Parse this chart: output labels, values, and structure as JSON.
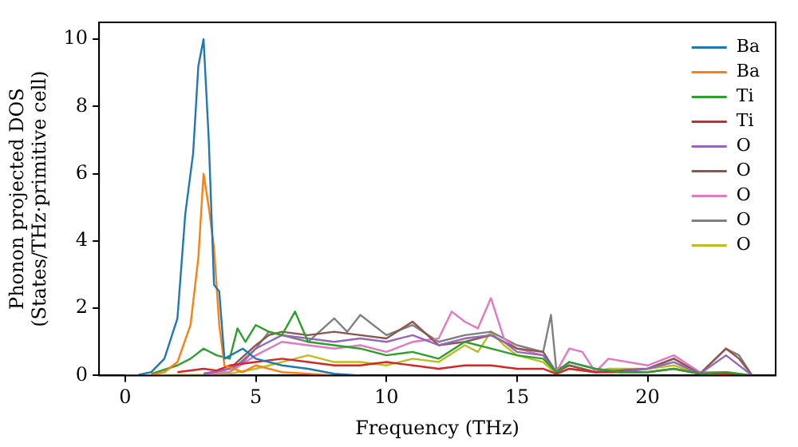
{
  "chart_data": {
    "type": "line",
    "xlabel": "Frequency (THz)",
    "ylabel": "Phonon projected DOS\n(States/THz·primitive cell)",
    "xlim": [
      -1,
      24.9
    ],
    "ylim": [
      0,
      10.5
    ],
    "xticks": [
      0,
      5,
      10,
      15,
      20
    ],
    "yticks": [
      0,
      2,
      4,
      6,
      8,
      10
    ],
    "grid": false,
    "legend": "top right",
    "marker": "none",
    "line_style": "solid",
    "series": [
      {
        "name": "Ba",
        "color": "#1f77b4",
        "x": [
          0.5,
          1,
          1.5,
          2,
          2.3,
          2.6,
          2.8,
          3,
          3.2,
          3.4,
          3.6,
          3.8,
          4.5,
          5,
          6,
          7,
          8,
          9
        ],
        "values": [
          0.02,
          0.1,
          0.5,
          1.7,
          4.8,
          6.6,
          9.2,
          10,
          7,
          2.7,
          2.5,
          0.5,
          0.8,
          0.5,
          0.3,
          0.2,
          0.05,
          0
        ]
      },
      {
        "name": "Ba",
        "color": "#ff7f0e",
        "x": [
          1,
          1.5,
          2,
          2.5,
          2.8,
          3,
          3.2,
          3.4,
          3.6,
          3.8,
          4.5,
          5,
          6,
          7,
          8
        ],
        "values": [
          0.02,
          0.1,
          0.4,
          1.5,
          3.5,
          6,
          5,
          3.8,
          1.5,
          0.3,
          0.1,
          0.3,
          0.1,
          0.05,
          0
        ]
      },
      {
        "name": "Ti",
        "color": "#2ca02c",
        "x": [
          1,
          2,
          2.5,
          3,
          3.5,
          4,
          4.3,
          4.6,
          5,
          5.5,
          6,
          6.5,
          7,
          8,
          9,
          10,
          11,
          12,
          13,
          14,
          15,
          16,
          16.5,
          17,
          18,
          19,
          20,
          21,
          22,
          23,
          24
        ],
        "values": [
          0.05,
          0.3,
          0.5,
          0.8,
          0.6,
          0.5,
          1.4,
          1,
          1.5,
          1.3,
          1.2,
          1.9,
          1,
          0.9,
          0.8,
          0.6,
          0.7,
          0.5,
          1,
          0.8,
          0.6,
          0.5,
          0.1,
          0.4,
          0.2,
          0.1,
          0.1,
          0.2,
          0.05,
          0.1,
          0
        ]
      },
      {
        "name": "Ti",
        "color": "#d62728",
        "x": [
          2,
          3,
          3.5,
          4,
          5,
          6,
          7,
          8,
          9,
          10,
          11,
          12,
          13,
          14,
          15,
          16,
          16.5,
          17,
          18,
          20,
          21,
          22,
          23,
          24
        ],
        "values": [
          0.1,
          0.2,
          0.15,
          0.3,
          0.4,
          0.5,
          0.4,
          0.3,
          0.3,
          0.4,
          0.3,
          0.2,
          0.3,
          0.3,
          0.2,
          0.2,
          0.05,
          0.2,
          0.1,
          0.1,
          0.2,
          0.05,
          0.05,
          0
        ]
      },
      {
        "name": "O",
        "color": "#9467bd",
        "x": [
          3,
          4,
          4.5,
          5,
          5.5,
          6,
          7,
          8,
          9,
          10,
          11,
          12,
          13,
          14,
          14.5,
          15,
          16,
          16.5,
          17,
          18,
          19,
          20,
          21,
          22,
          23,
          24
        ],
        "values": [
          0.05,
          0.2,
          0.4,
          0.8,
          1,
          1.2,
          1.1,
          1,
          1.1,
          1,
          1.2,
          0.9,
          1.1,
          1.2,
          1,
          0.7,
          0.6,
          0.1,
          0.4,
          0.2,
          0.1,
          0.2,
          0.4,
          0.05,
          0.6,
          0
        ]
      },
      {
        "name": "O",
        "color": "#8c564b",
        "x": [
          3,
          4,
          5,
          5.5,
          6,
          7,
          8,
          9,
          10,
          11,
          12,
          13,
          14,
          15,
          16,
          16.5,
          17,
          18,
          20,
          21,
          22,
          23,
          23.5,
          24
        ],
        "values": [
          0.05,
          0.2,
          0.9,
          1.2,
          1.3,
          1.2,
          1.3,
          1.2,
          1.1,
          1.6,
          0.9,
          1,
          1.2,
          0.8,
          0.7,
          0.1,
          0.3,
          0.1,
          0.2,
          0.5,
          0.05,
          0.8,
          0.5,
          0
        ]
      },
      {
        "name": "O",
        "color": "#e377c2",
        "x": [
          3,
          4,
          5,
          6,
          7,
          8,
          9,
          10,
          11,
          12,
          12.5,
          13,
          13.5,
          14,
          14.5,
          15,
          16,
          16.5,
          17,
          17.5,
          18,
          18.5,
          20,
          21,
          22,
          23,
          24
        ],
        "values": [
          0.05,
          0.1,
          0.6,
          1,
          0.9,
          0.8,
          0.9,
          0.7,
          1,
          1.1,
          1.9,
          1.6,
          1.4,
          2.3,
          1.1,
          0.8,
          0.6,
          0.1,
          0.8,
          0.7,
          0.1,
          0.5,
          0.3,
          0.6,
          0.1,
          0.1,
          0
        ]
      },
      {
        "name": "O",
        "color": "#7f7f7f",
        "x": [
          3,
          4,
          5,
          5.5,
          6,
          7,
          8,
          8.5,
          9,
          10,
          11,
          12,
          13,
          14,
          15,
          16,
          16.3,
          16.5,
          17,
          18,
          20,
          21,
          22,
          23,
          23.5,
          24
        ],
        "values": [
          0.05,
          0.1,
          0.8,
          1.3,
          1.2,
          1,
          1.7,
          1.3,
          1.8,
          1.2,
          1.5,
          1,
          1.2,
          1.3,
          0.9,
          0.7,
          1.8,
          0.2,
          0.3,
          0.1,
          0.2,
          0.5,
          0.05,
          0.8,
          0.6,
          0
        ]
      },
      {
        "name": "O",
        "color": "#bcbd22",
        "x": [
          0,
          3,
          4,
          5,
          6,
          7,
          8,
          9,
          10,
          11,
          12,
          13,
          13.5,
          14,
          14.5,
          15,
          16,
          16.5,
          17,
          18,
          18.5,
          20,
          21,
          22,
          24
        ],
        "values": [
          0,
          0.02,
          0.05,
          0.2,
          0.4,
          0.6,
          0.4,
          0.4,
          0.3,
          0.5,
          0.4,
          0.9,
          0.7,
          1.3,
          0.9,
          0.6,
          0.4,
          0.05,
          0.2,
          0.1,
          0.2,
          0.2,
          0.3,
          0.05,
          0
        ]
      }
    ]
  }
}
